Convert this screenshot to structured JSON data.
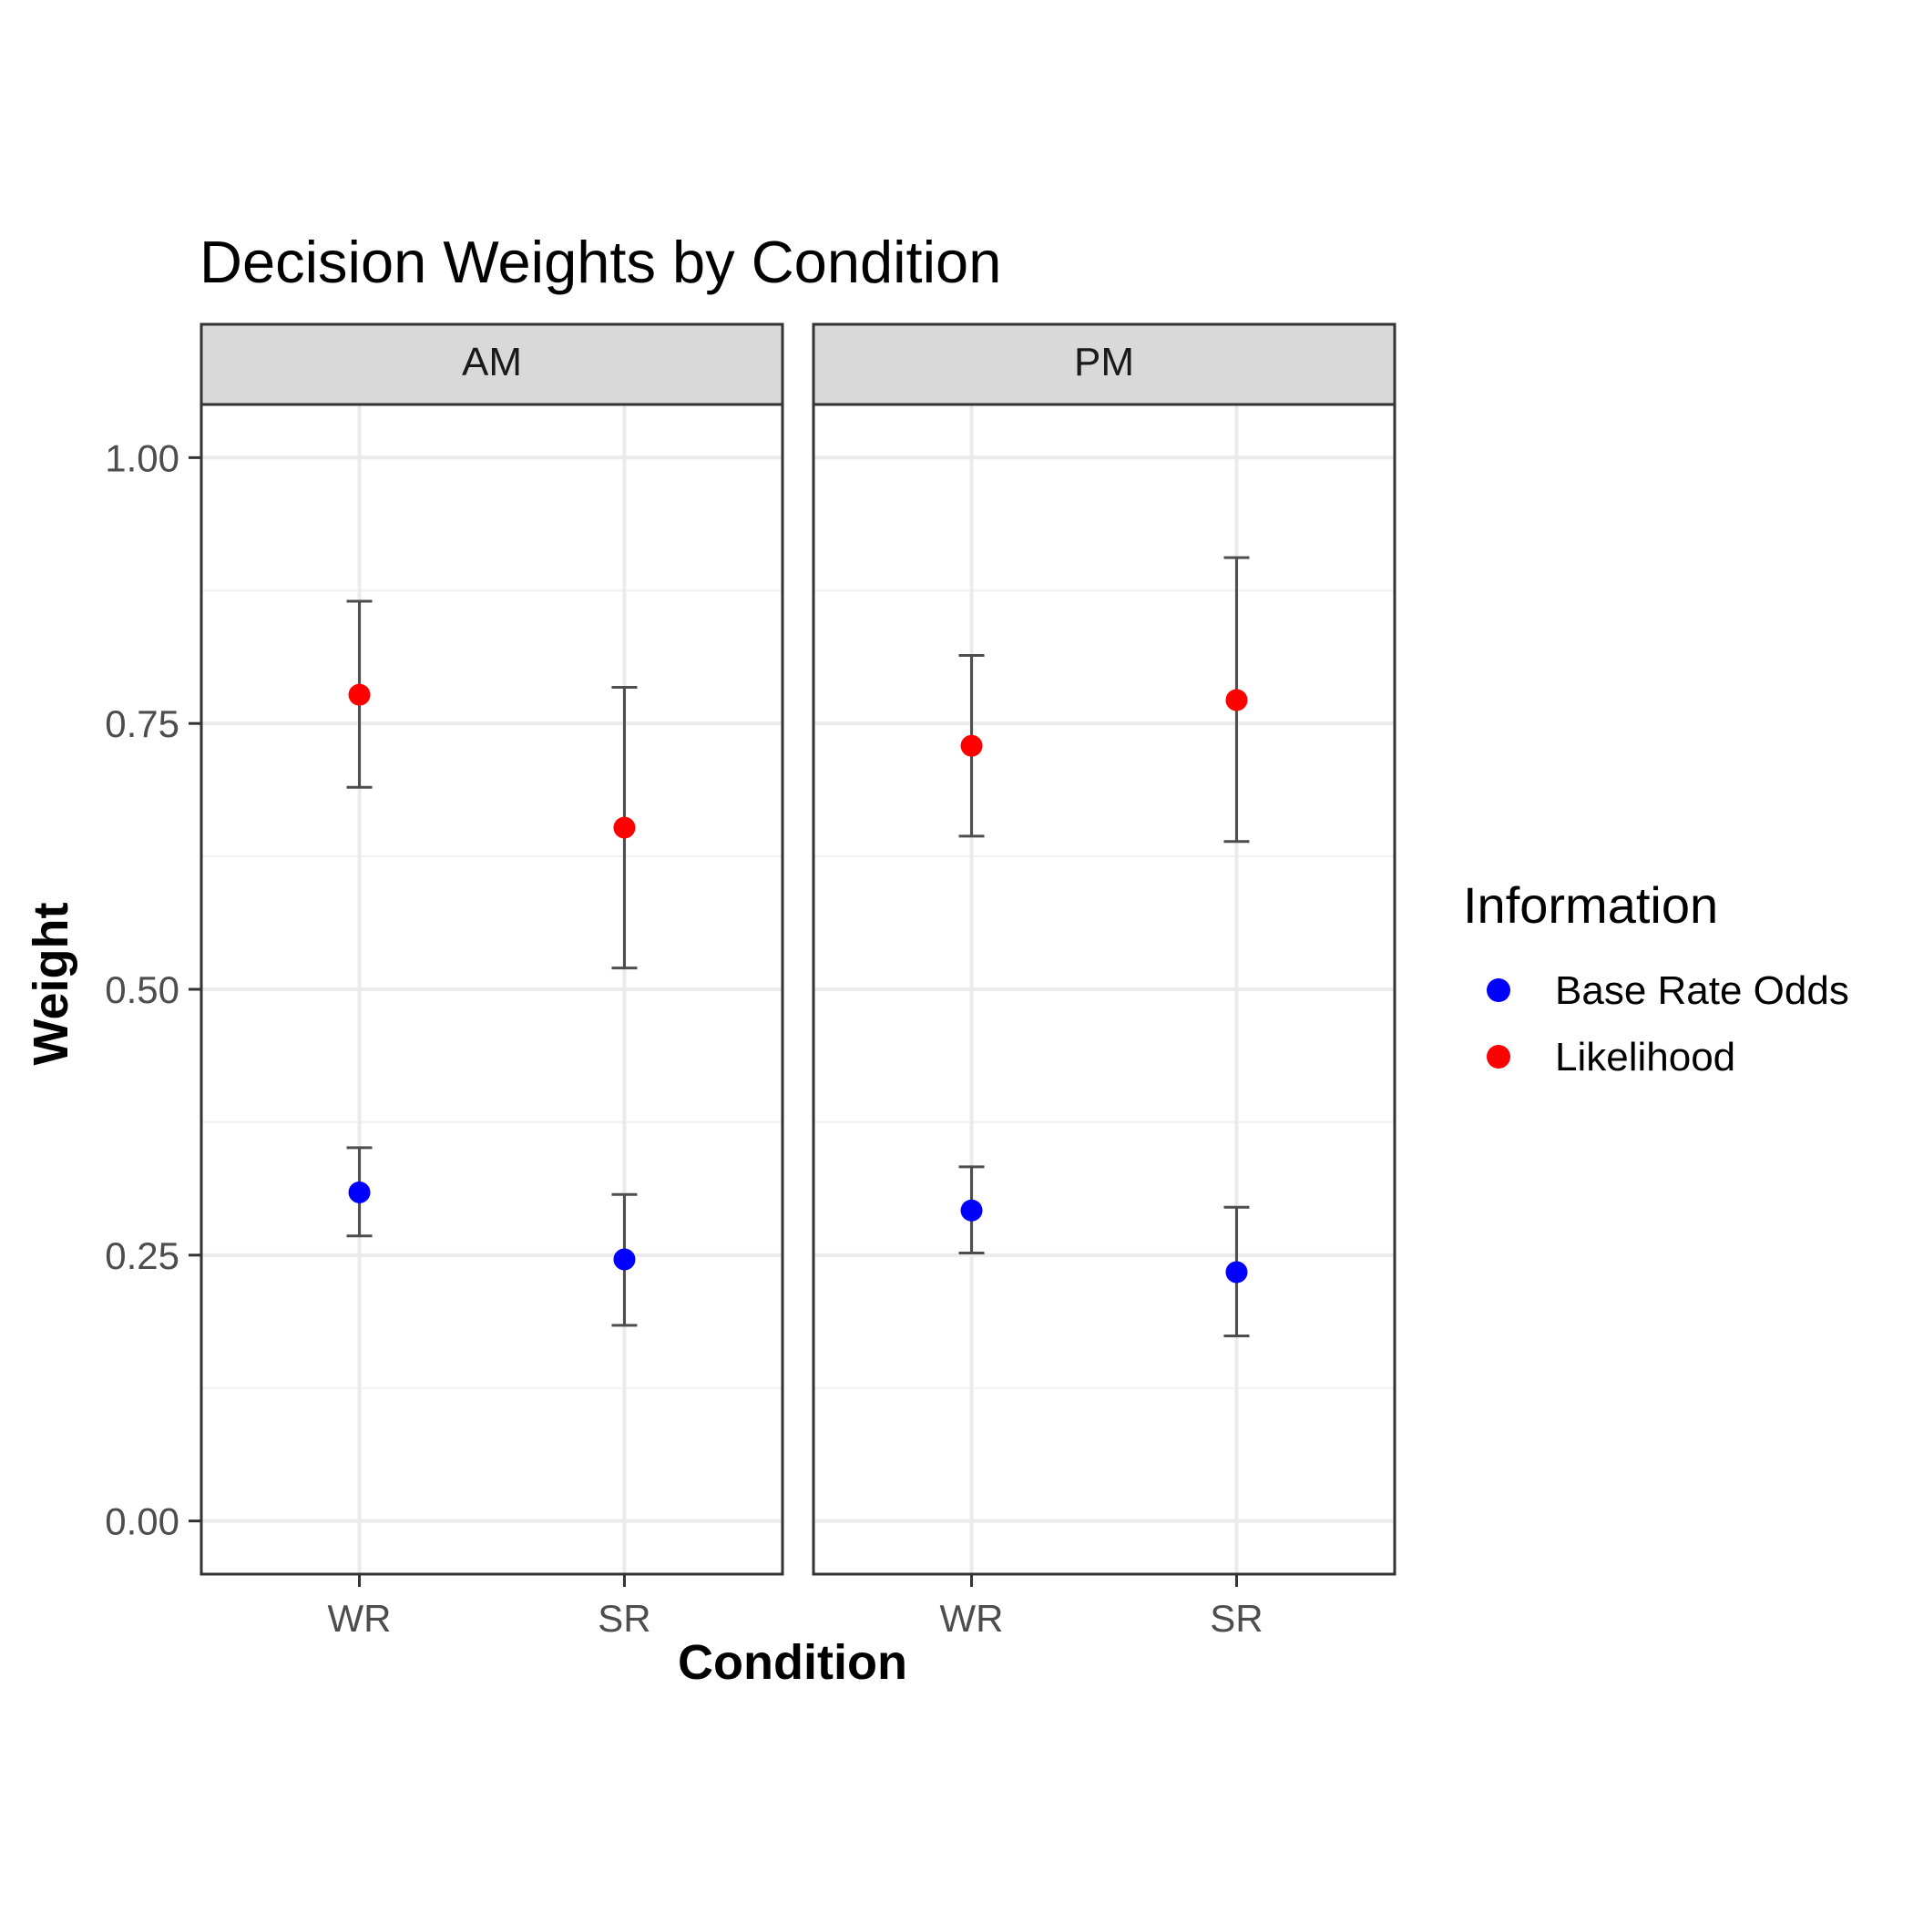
{
  "chart_data": {
    "type": "scatter",
    "title": "Decision Weights by Condition",
    "xlabel": "Condition",
    "ylabel": "Weight",
    "ylim": [
      -0.05,
      1.05
    ],
    "yticks": [
      "0.00",
      "0.25",
      "0.50",
      "0.75",
      "1.00"
    ],
    "categories": [
      "WR",
      "SR"
    ],
    "grid": true,
    "legend": {
      "title": "Information",
      "placement": "right",
      "entries": [
        "Base Rate Odds",
        "Likelihood"
      ]
    },
    "colors": {
      "Base Rate Odds": "#0000ff",
      "Likelihood": "#ff0000",
      "errorbar": "#4d4d4d"
    },
    "panels": [
      {
        "label": "AM",
        "series": [
          {
            "name": "Base Rate Odds",
            "values": [
              0.309,
              0.246
            ],
            "lower": [
              0.268,
              0.184
            ],
            "upper": [
              0.351,
              0.307
            ]
          },
          {
            "name": "Likelihood",
            "values": [
              0.777,
              0.652
            ],
            "lower": [
              0.69,
              0.52
            ],
            "upper": [
              0.865,
              0.784
            ]
          }
        ]
      },
      {
        "label": "PM",
        "series": [
          {
            "name": "Base Rate Odds",
            "values": [
              0.292,
              0.234
            ],
            "lower": [
              0.252,
              0.174
            ],
            "upper": [
              0.333,
              0.295
            ]
          },
          {
            "name": "Likelihood",
            "values": [
              0.729,
              0.772
            ],
            "lower": [
              0.644,
              0.639
            ],
            "upper": [
              0.814,
              0.906
            ]
          }
        ]
      }
    ]
  }
}
